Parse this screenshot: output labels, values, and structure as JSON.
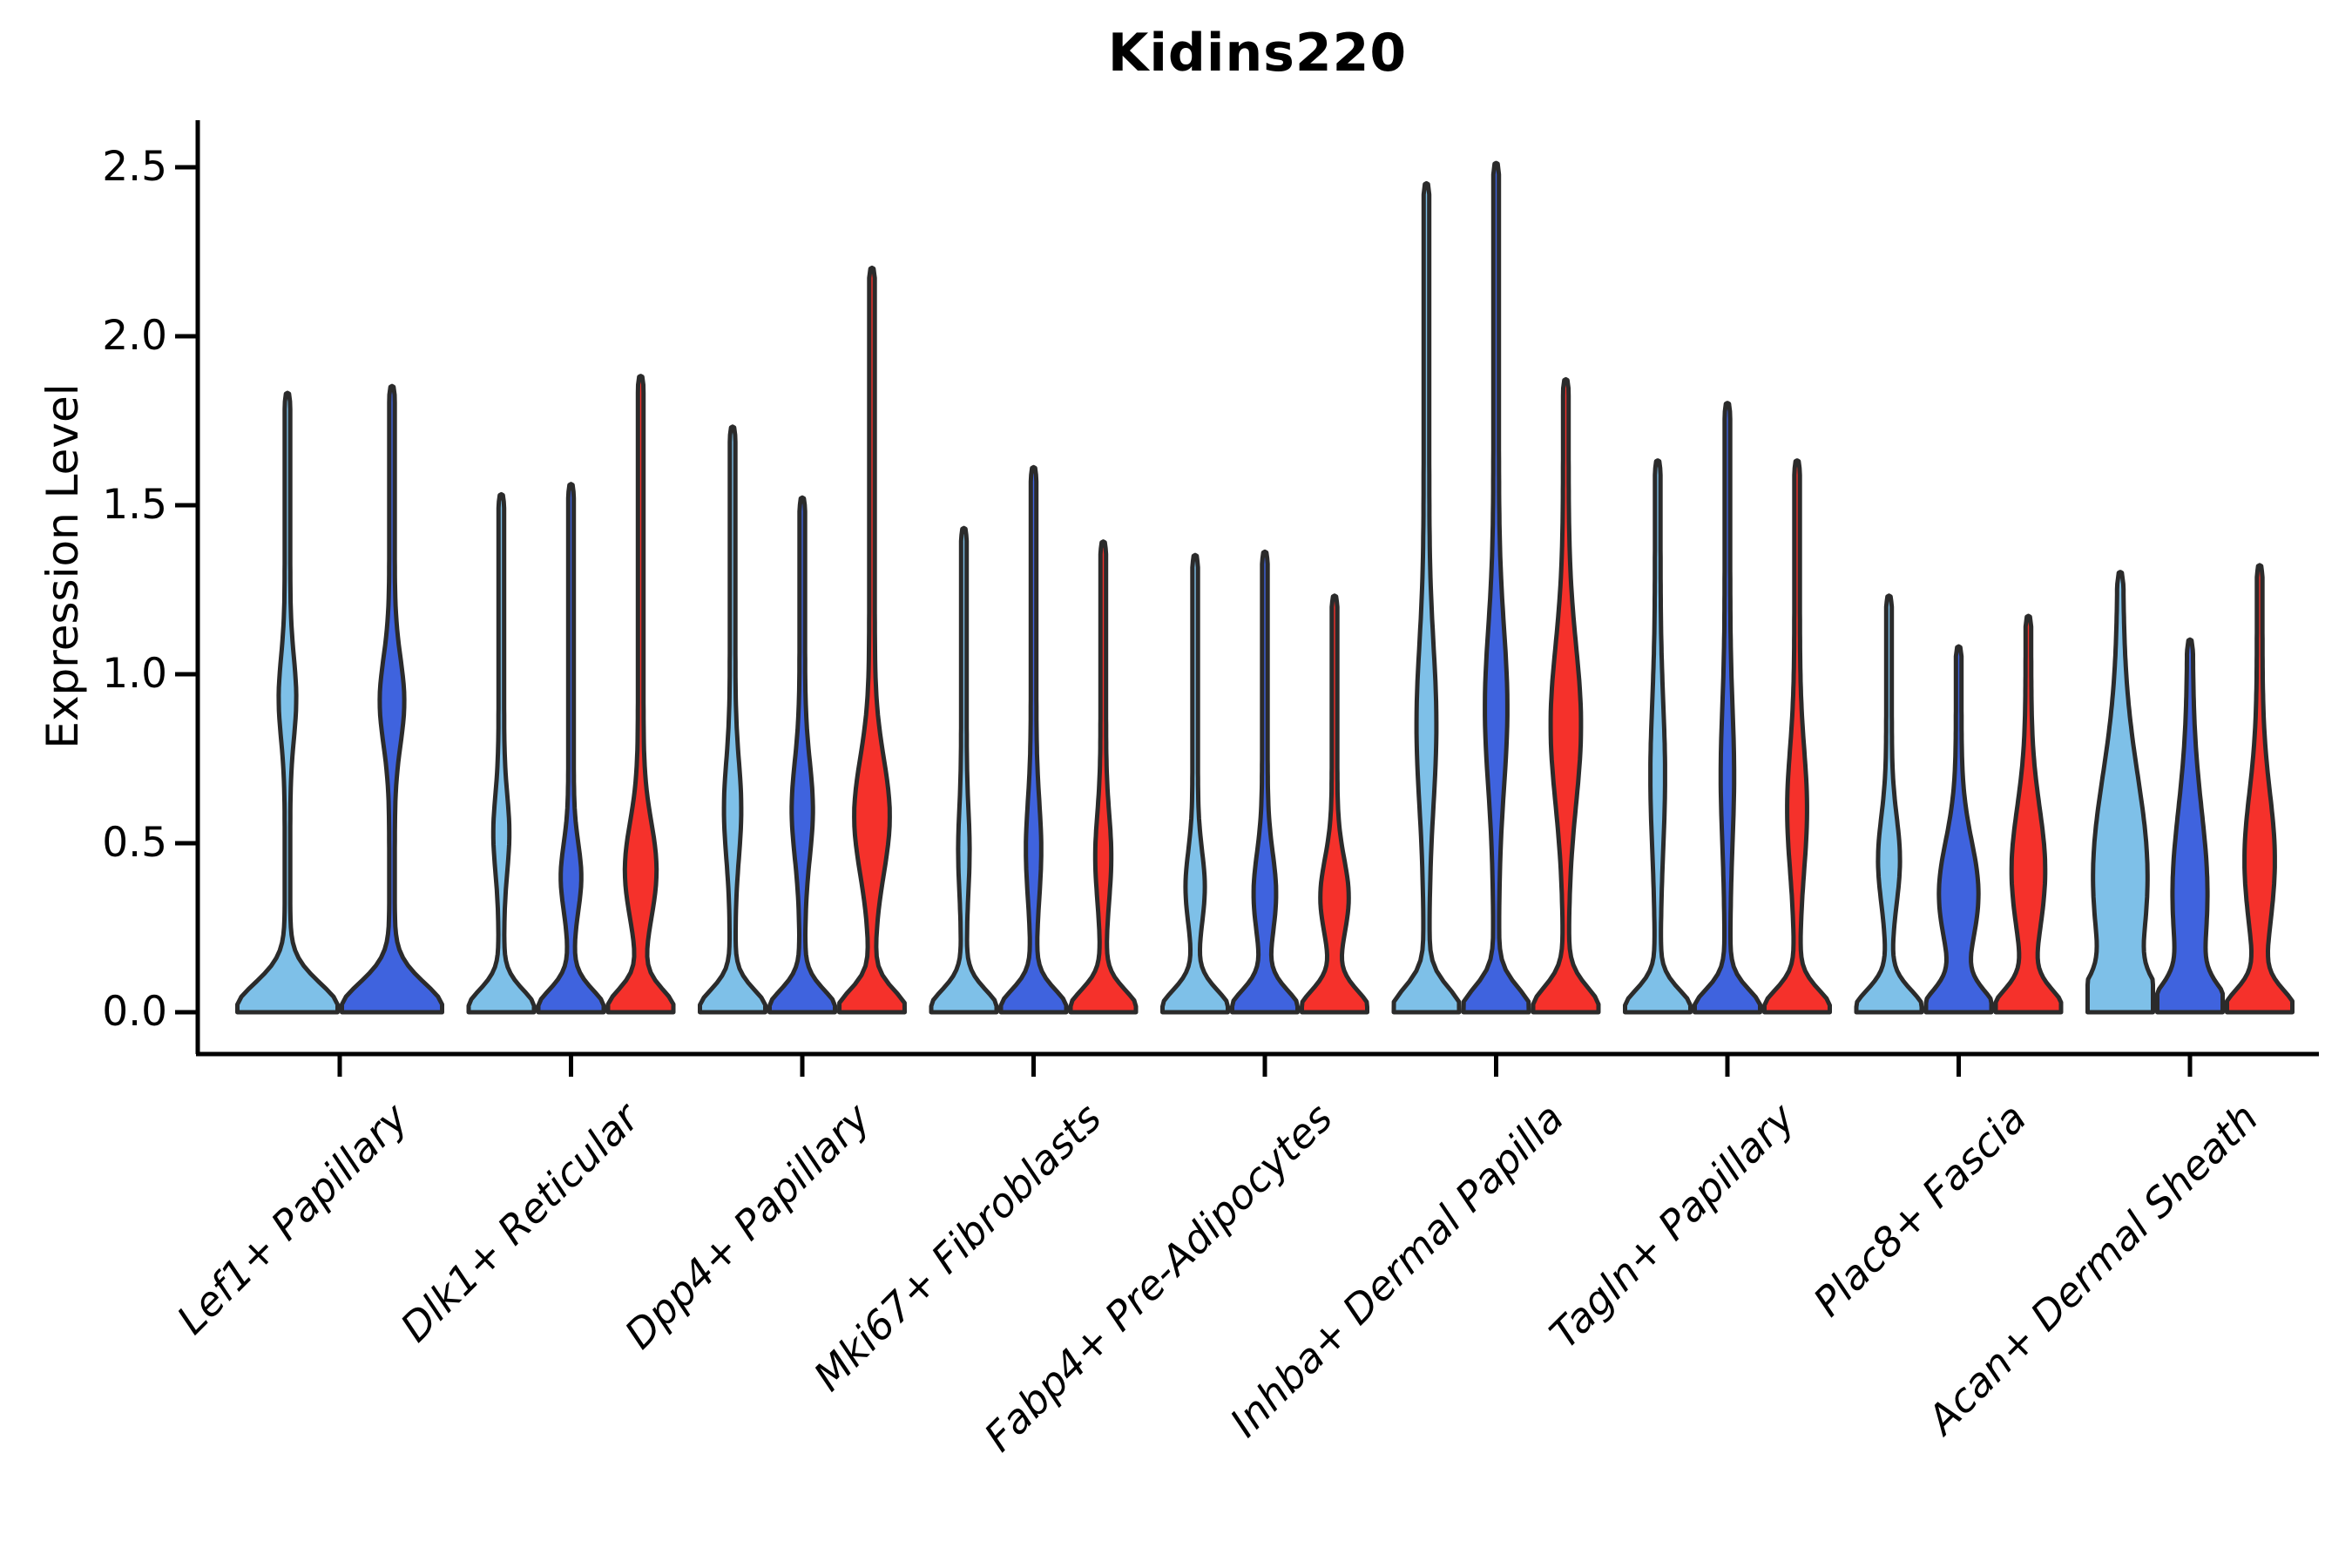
{
  "figure": {
    "title": "Kidins220",
    "background": "#ffffff"
  },
  "axes": {
    "ylabel": "Expression Level",
    "ytick_labels": [
      "0.0",
      "0.5",
      "1.0",
      "1.5",
      "2.0",
      "2.5"
    ],
    "ytick_values": [
      0,
      0.5,
      1.0,
      1.5,
      2.0,
      2.5
    ]
  },
  "colors": {
    "skyblue": "#7EC0E8",
    "royalblue": "#3F63DE",
    "red": "#F5312B",
    "outline": "#2B2B2B",
    "axis": "#000000"
  },
  "chart_data": {
    "type": "violin",
    "title": "Kidins220",
    "xlabel": "",
    "ylabel": "Expression Level",
    "ylim": [
      0,
      2.63
    ],
    "yticks": [
      0,
      0.5,
      1.0,
      1.5,
      2.0,
      2.5
    ],
    "grid": false,
    "legend": null,
    "baseline": "all violins share a zero-inflated base at expression 0",
    "categories": [
      "Lef1+ Papillary",
      "Dlk1+ Reticular",
      "Dpp4+ Papillary",
      "Mki67+ Fibroblasts",
      "Fabp4+ Pre-Adipocytes",
      "Inhba+ Dermal Papilla",
      "Tagln+ Papillary",
      "Plac8+ Fascia",
      "Acan+ Dermal Sheath"
    ],
    "series": [
      {
        "name": "blue_light",
        "color": "#7EC0E8",
        "violins": [
          {
            "max": 1.83,
            "bulge_center": 0.93,
            "bulge_sigma": 0.17,
            "bulge_amp": 0.12,
            "base_sigma": 0.12
          },
          {
            "max": 1.53,
            "bulge_center": 0.53,
            "bulge_sigma": 0.16,
            "bulge_amp": 0.16,
            "base_sigma": 0.09
          },
          {
            "max": 1.73,
            "bulge_center": 0.6,
            "bulge_sigma": 0.2,
            "bulge_amp": 0.18,
            "base_sigma": 0.09
          },
          {
            "max": 1.43,
            "bulge_center": 0.48,
            "bulge_sigma": 0.17,
            "bulge_amp": 0.09,
            "base_sigma": 0.09
          },
          {
            "max": 1.35,
            "bulge_center": 0.37,
            "bulge_sigma": 0.15,
            "bulge_amp": 0.21,
            "base_sigma": 0.09
          },
          {
            "max": 2.45,
            "bulge_center": 0.85,
            "bulge_sigma": 0.33,
            "bulge_amp": 0.22,
            "base_sigma": 0.1
          },
          {
            "max": 1.63,
            "bulge_center": 0.7,
            "bulge_sigma": 0.3,
            "bulge_amp": 0.14,
            "base_sigma": 0.09
          },
          {
            "max": 1.23,
            "bulge_center": 0.45,
            "bulge_sigma": 0.18,
            "bulge_amp": 0.25,
            "base_sigma": 0.09
          },
          {
            "max": 1.3,
            "bulge_center": 0.4,
            "bulge_sigma": 0.42,
            "bulge_amp": 0.75,
            "base_sigma": 0.11
          }
        ]
      },
      {
        "name": "blue_dark",
        "color": "#3F63DE",
        "violins": [
          {
            "max": 1.85,
            "bulge_center": 0.92,
            "bulge_sigma": 0.18,
            "bulge_amp": 0.19,
            "base_sigma": 0.12
          },
          {
            "max": 1.56,
            "bulge_center": 0.4,
            "bulge_sigma": 0.14,
            "bulge_amp": 0.23,
            "base_sigma": 0.09
          },
          {
            "max": 1.52,
            "bulge_center": 0.6,
            "bulge_sigma": 0.2,
            "bulge_amp": 0.24,
            "base_sigma": 0.09
          },
          {
            "max": 1.61,
            "bulge_center": 0.48,
            "bulge_sigma": 0.2,
            "bulge_amp": 0.15,
            "base_sigma": 0.09
          },
          {
            "max": 1.36,
            "bulge_center": 0.35,
            "bulge_sigma": 0.17,
            "bulge_amp": 0.26,
            "base_sigma": 0.09
          },
          {
            "max": 2.51,
            "bulge_center": 0.9,
            "bulge_sigma": 0.33,
            "bulge_amp": 0.26,
            "base_sigma": 0.1
          },
          {
            "max": 1.8,
            "bulge_center": 0.7,
            "bulge_sigma": 0.28,
            "bulge_amp": 0.12,
            "base_sigma": 0.09
          },
          {
            "max": 1.08,
            "bulge_center": 0.35,
            "bulge_sigma": 0.22,
            "bulge_amp": 0.52,
            "base_sigma": 0.09
          },
          {
            "max": 1.1,
            "bulge_center": 0.35,
            "bulge_sigma": 0.35,
            "bulge_amp": 0.45,
            "base_sigma": 0.1
          }
        ]
      },
      {
        "name": "red",
        "color": "#F5312B",
        "violins": [
          null,
          {
            "max": 1.88,
            "bulge_center": 0.42,
            "bulge_sigma": 0.2,
            "bulge_amp": 0.4,
            "base_sigma": 0.09
          },
          {
            "max": 2.2,
            "bulge_center": 0.58,
            "bulge_sigma": 0.24,
            "bulge_amp": 0.46,
            "base_sigma": 0.09
          },
          {
            "max": 1.39,
            "bulge_center": 0.46,
            "bulge_sigma": 0.18,
            "bulge_amp": 0.16,
            "base_sigma": 0.09
          },
          {
            "max": 1.23,
            "bulge_center": 0.34,
            "bulge_sigma": 0.16,
            "bulge_amp": 0.35,
            "base_sigma": 0.09
          },
          {
            "max": 1.87,
            "bulge_center": 0.85,
            "bulge_sigma": 0.33,
            "bulge_amp": 0.38,
            "base_sigma": 0.1
          },
          {
            "max": 1.63,
            "bulge_center": 0.6,
            "bulge_sigma": 0.25,
            "bulge_amp": 0.22,
            "base_sigma": 0.09
          },
          {
            "max": 1.17,
            "bulge_center": 0.42,
            "bulge_sigma": 0.26,
            "bulge_amp": 0.43,
            "base_sigma": 0.09
          },
          {
            "max": 1.32,
            "bulge_center": 0.45,
            "bulge_sigma": 0.28,
            "bulge_amp": 0.38,
            "base_sigma": 0.09
          }
        ]
      }
    ]
  }
}
